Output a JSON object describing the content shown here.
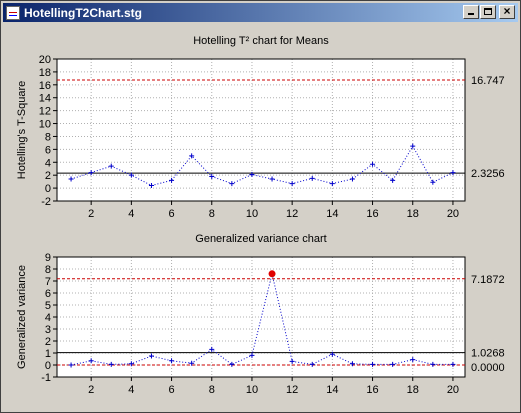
{
  "window": {
    "title": "HotellingT2Chart.stg",
    "icon": "chart-document-icon",
    "min_symbol": "",
    "max_symbol": "",
    "close_symbol": "×"
  },
  "colors": {
    "series": "#0000cc",
    "limit": "#cc0000",
    "center": "#000000",
    "out_of_control": "#e00000",
    "grid": "#b0b0b0",
    "plot_bg": "#ffffff"
  },
  "chart_data": [
    {
      "type": "line",
      "title": "Hotelling T² chart for Means",
      "xlabel": "",
      "ylabel": "Hotelling's T-Square",
      "x": [
        1,
        2,
        3,
        4,
        5,
        6,
        7,
        8,
        9,
        10,
        11,
        12,
        13,
        14,
        15,
        16,
        17,
        18,
        19,
        20
      ],
      "series": [
        {
          "values": [
            1.4,
            2.4,
            3.4,
            2.0,
            0.4,
            1.2,
            5.0,
            1.8,
            0.7,
            2.1,
            1.4,
            0.7,
            1.5,
            0.7,
            1.4,
            3.7,
            1.2,
            6.5,
            0.9,
            2.4
          ]
        }
      ],
      "xlim": [
        0.3,
        20.6
      ],
      "ylim": [
        -2,
        20
      ],
      "xticks": [
        2,
        4,
        6,
        8,
        10,
        12,
        14,
        16,
        18,
        20
      ],
      "yticks": [
        -2,
        0,
        2,
        4,
        6,
        8,
        10,
        12,
        14,
        16,
        18,
        20
      ],
      "ucl": 16.747,
      "center": 2.3256,
      "ucl_label": "16.747",
      "center_label": "2.3256",
      "grid": true
    },
    {
      "type": "line",
      "title": "Generalized variance chart",
      "xlabel": "",
      "ylabel": "Generalized variance",
      "x": [
        1,
        2,
        3,
        4,
        5,
        6,
        7,
        8,
        9,
        10,
        11,
        12,
        13,
        14,
        15,
        16,
        17,
        18,
        19,
        20
      ],
      "series": [
        {
          "values": [
            0.0,
            0.35,
            0.05,
            0.1,
            0.75,
            0.35,
            0.15,
            1.3,
            0.05,
            0.8,
            7.6,
            0.3,
            0.05,
            0.9,
            0.1,
            0.05,
            0.05,
            0.45,
            0.05,
            0.05
          ]
        }
      ],
      "out_of_control_index": 10,
      "xlim": [
        0.3,
        20.6
      ],
      "ylim": [
        -1,
        9
      ],
      "xticks": [
        2,
        4,
        6,
        8,
        10,
        12,
        14,
        16,
        18,
        20
      ],
      "yticks": [
        -1,
        0,
        1,
        2,
        3,
        4,
        5,
        6,
        7,
        8,
        9
      ],
      "ucl": 7.1872,
      "center": 1.0268,
      "lcl": 0.0,
      "ucl_label": "7.1872",
      "center_label": "1.0268",
      "lcl_label": "0.0000",
      "grid": true
    }
  ]
}
